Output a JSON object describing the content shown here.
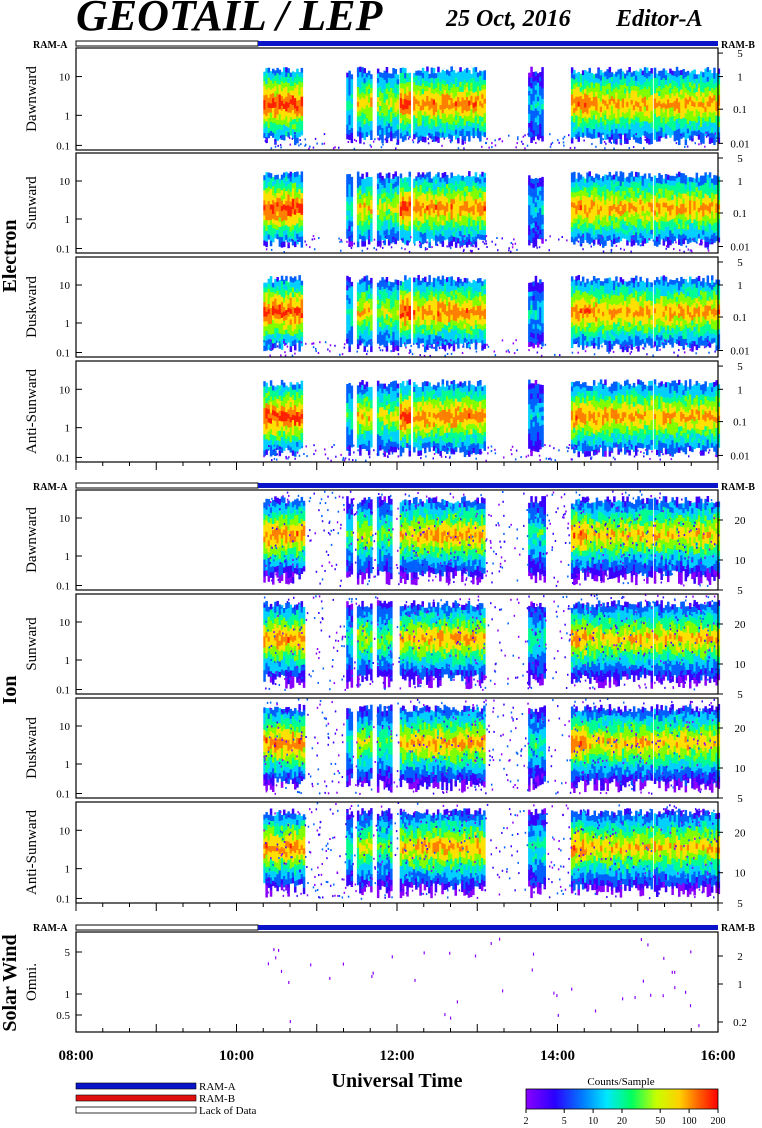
{
  "header": {
    "title": "GEOTAIL / LEP",
    "date": "25 Oct, 2016",
    "editor": "Editor-A"
  },
  "groups": [
    {
      "label": "Electron",
      "panels": [
        0,
        1,
        2,
        3
      ]
    },
    {
      "label": "Ion",
      "panels": [
        4,
        5,
        6,
        7
      ]
    },
    {
      "label": "Solar Wind",
      "panels": [
        8
      ]
    }
  ],
  "ram_labels": {
    "left": "RAM-A",
    "right": "RAM-B"
  },
  "colors": {
    "ram_a": "#0a14c8",
    "ram_b": "#e01010",
    "lack": "#ffffff",
    "frame": "#000000"
  },
  "colorbar": {
    "title": "Counts/Sample",
    "ticks": [
      "2",
      "5",
      "10",
      "20",
      "50",
      "100",
      "200"
    ],
    "range": [
      2,
      200
    ],
    "scale": "log"
  },
  "legend": [
    {
      "label": "RAM-A",
      "color": "#0a14c8"
    },
    {
      "label": "RAM-B",
      "color": "#e01010"
    },
    {
      "label": "Lack of Data",
      "color": "#ffffff"
    }
  ],
  "chart_data": {
    "type": "heatmap",
    "title": "GEOTAIL / LEP",
    "xlabel": "Universal Time",
    "x_ticks": [
      "08:00",
      "10:00",
      "12:00",
      "14:00",
      "16:00"
    ],
    "xlim": [
      "08:00",
      "16:00"
    ],
    "data_start": "10:20",
    "grid": false,
    "panels": [
      {
        "ylabel": "Dawnward",
        "left_ticks": [
          "10",
          "1",
          "0.1"
        ],
        "right_ticks": [
          "5",
          "1",
          "0.1",
          "0.01"
        ]
      },
      {
        "ylabel": "Sunward",
        "left_ticks": [
          "10",
          "1",
          "0.1"
        ],
        "right_ticks": [
          "5",
          "1",
          "0.1",
          "0.01"
        ]
      },
      {
        "ylabel": "Duskward",
        "left_ticks": [
          "10",
          "1",
          "0.1"
        ],
        "right_ticks": [
          "5",
          "1",
          "0.1",
          "0.01"
        ]
      },
      {
        "ylabel": "Anti-Sunward",
        "left_ticks": [
          "10",
          "1",
          "0.1"
        ],
        "right_ticks": [
          "5",
          "1",
          "0.1",
          "0.01"
        ]
      },
      {
        "ylabel": "Dawnward",
        "left_ticks": [
          "10",
          "1",
          "0.1"
        ],
        "right_ticks": [
          "20",
          "10",
          "5"
        ]
      },
      {
        "ylabel": "Sunward",
        "left_ticks": [
          "10",
          "1",
          "0.1"
        ],
        "right_ticks": [
          "20",
          "10",
          "5"
        ]
      },
      {
        "ylabel": "Duskward",
        "left_ticks": [
          "10",
          "1",
          "0.1"
        ],
        "right_ticks": [
          "20",
          "10",
          "5"
        ]
      },
      {
        "ylabel": "Anti-Sunward",
        "left_ticks": [
          "10",
          "1",
          "0.1"
        ],
        "right_ticks": [
          "20",
          "10",
          "5"
        ]
      },
      {
        "ylabel": "Omni.",
        "left_ticks": [
          "5",
          "1",
          "0.5"
        ],
        "right_ticks": [
          "2",
          "1",
          "0.2"
        ]
      }
    ]
  }
}
